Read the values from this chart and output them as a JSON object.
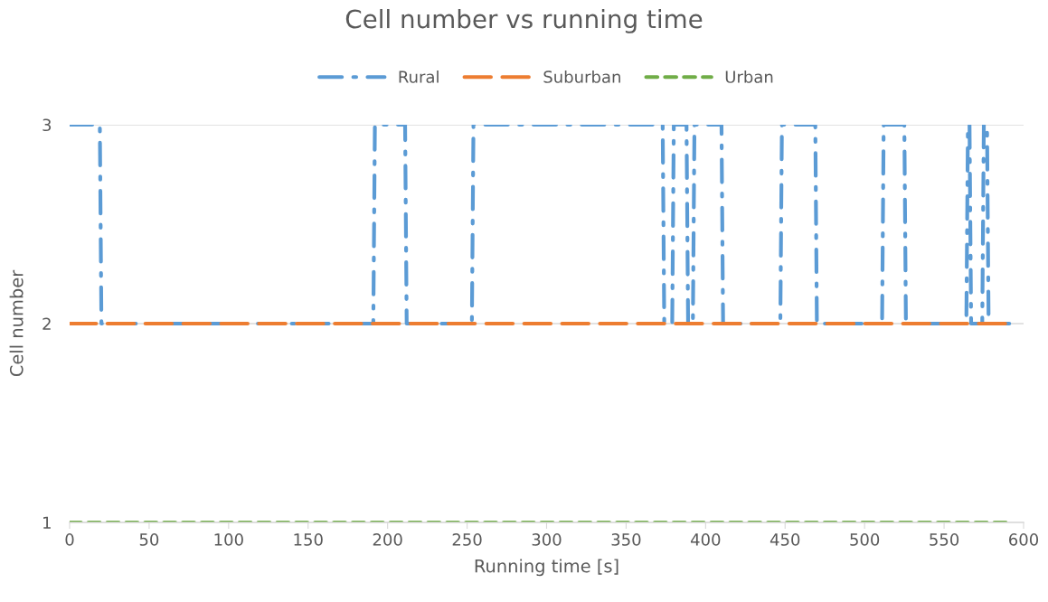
{
  "chart_data": {
    "type": "line",
    "title": "Cell number vs running time",
    "xlabel": "Running time [s]",
    "ylabel": "Cell number",
    "xlim": [
      0,
      600
    ],
    "xticks": [
      0,
      50,
      100,
      150,
      200,
      250,
      300,
      350,
      400,
      450,
      500,
      550,
      600
    ],
    "ylim": [
      1,
      3
    ],
    "yticks": [
      1,
      2,
      3
    ],
    "grid": "y",
    "legend": "top",
    "marker": "none",
    "series": [
      {
        "name": "Rural",
        "color": "#5b9bd5",
        "line_style": "dashdot",
        "x": [
          0,
          19,
          20,
          191,
          192,
          211,
          212,
          253,
          254,
          373,
          374,
          379,
          380,
          388,
          389,
          392,
          393,
          410,
          411,
          447,
          448,
          469,
          470,
          511,
          512,
          525,
          526,
          564,
          565,
          566,
          567,
          574,
          575,
          577,
          578,
          591
        ],
        "values": [
          3,
          3,
          2,
          2,
          3,
          3,
          2,
          2,
          3,
          3,
          2,
          2,
          3,
          3,
          2,
          2,
          3,
          3,
          2,
          2,
          3,
          3,
          2,
          2,
          3,
          3,
          2,
          2,
          3,
          3,
          2,
          2,
          3,
          3,
          2,
          2
        ]
      },
      {
        "name": "Suburban",
        "color": "#ed7d31",
        "line_style": "longdash",
        "x": [
          0,
          591
        ],
        "values": [
          2,
          2
        ]
      },
      {
        "name": "Urban",
        "color": "#70ad47",
        "line_style": "dashed",
        "x": [
          0,
          591
        ],
        "values": [
          1,
          1
        ]
      }
    ]
  }
}
